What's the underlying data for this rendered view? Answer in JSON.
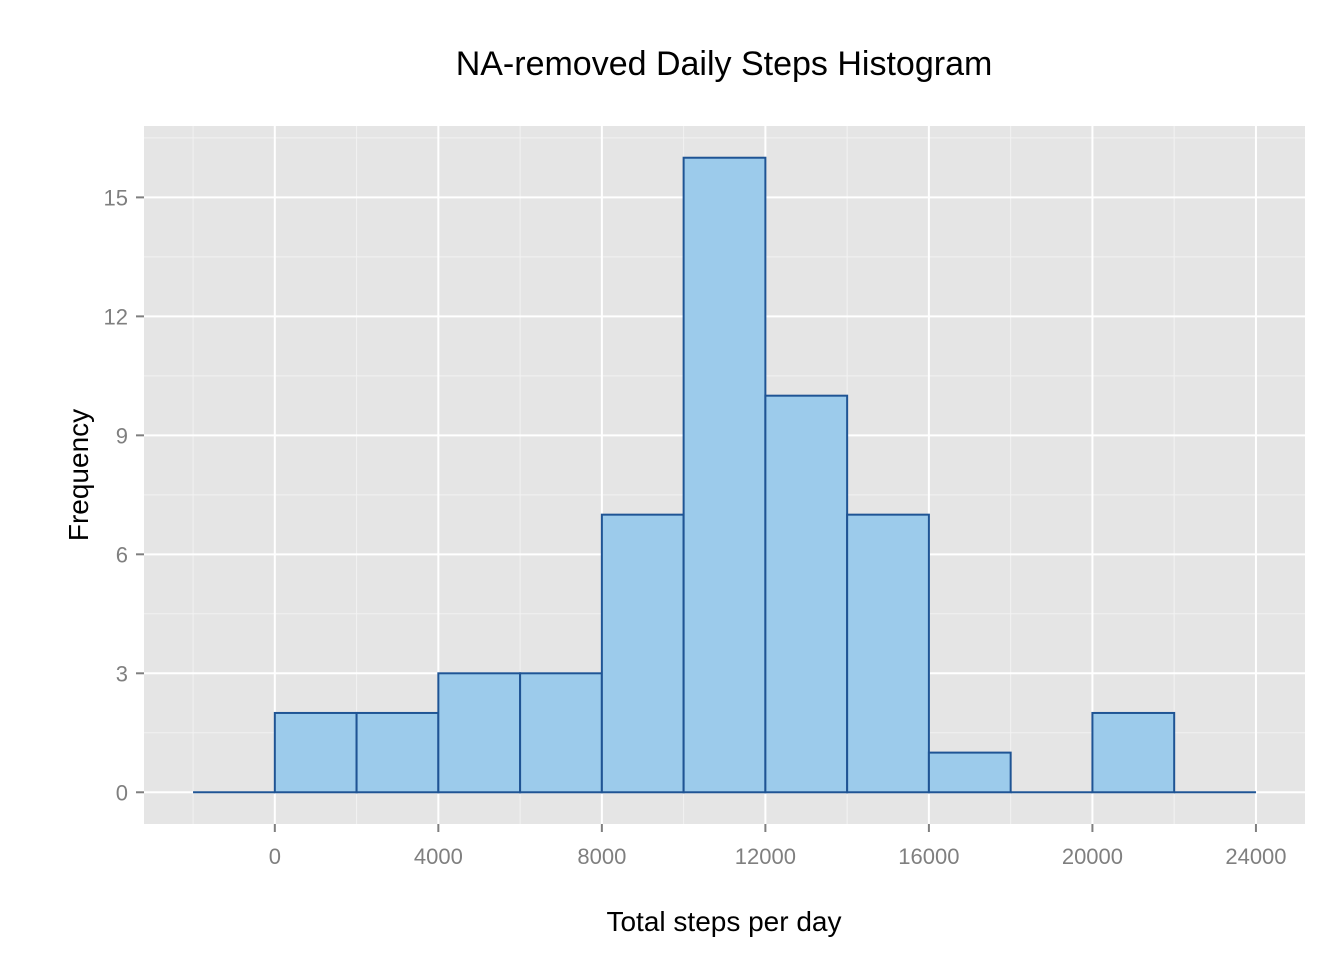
{
  "chart_data": {
    "type": "bar",
    "title": "NA-removed Daily Steps Histogram",
    "xlabel": "Total steps per day",
    "ylabel": "Frequency",
    "bin_width": 2000,
    "bins": [
      {
        "start": -2000,
        "end": 0,
        "count": 0
      },
      {
        "start": 0,
        "end": 2000,
        "count": 2
      },
      {
        "start": 2000,
        "end": 4000,
        "count": 2
      },
      {
        "start": 4000,
        "end": 6000,
        "count": 3
      },
      {
        "start": 6000,
        "end": 8000,
        "count": 3
      },
      {
        "start": 8000,
        "end": 10000,
        "count": 7
      },
      {
        "start": 10000,
        "end": 12000,
        "count": 16
      },
      {
        "start": 12000,
        "end": 14000,
        "count": 10
      },
      {
        "start": 14000,
        "end": 16000,
        "count": 7
      },
      {
        "start": 16000,
        "end": 18000,
        "count": 1
      },
      {
        "start": 18000,
        "end": 20000,
        "count": 0
      },
      {
        "start": 20000,
        "end": 22000,
        "count": 2
      },
      {
        "start": 22000,
        "end": 24000,
        "count": 0
      }
    ],
    "xlim": [
      -3200,
      25200
    ],
    "ylim": [
      -0.8,
      16.8
    ],
    "x_ticks": [
      0,
      4000,
      8000,
      12000,
      16000,
      20000,
      24000
    ],
    "x_tick_labels": [
      "0",
      "4000",
      "8000",
      "12000",
      "16000",
      "20000",
      "24000"
    ],
    "y_ticks": [
      0,
      3,
      6,
      9,
      12,
      15
    ],
    "y_tick_labels": [
      "0",
      "3",
      "6",
      "9",
      "12",
      "15"
    ],
    "grid": true,
    "colors": {
      "panel_background": "#e5e5e5",
      "major_grid": "#ffffff",
      "minor_grid": "#f2f2f2",
      "bar_fill": "#9ccbeb",
      "bar_outline": "#1f5494",
      "tick_label": "#7f7f7f"
    }
  }
}
